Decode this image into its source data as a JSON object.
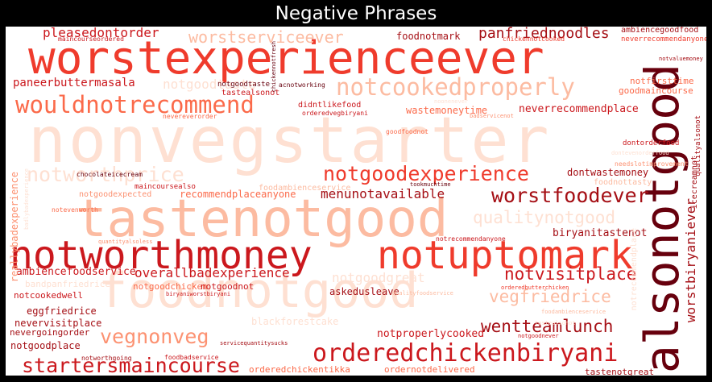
{
  "title": "Negative Phrases",
  "colors": {
    "background": "#ffffff",
    "frame": "#000000",
    "palette": [
      "#fee0d2",
      "#fcbba1",
      "#fc9272",
      "#fb6a4a",
      "#ef3b2c",
      "#cb181d",
      "#a50f15",
      "#67000d"
    ]
  },
  "words": [
    "nonvegstarter",
    "tastenotgood",
    "worstexperienceever",
    "notworthmoney",
    "notuptomark",
    "foodnotgood",
    "alsonotgood",
    "orderedchickenbiryani",
    "wouldnotrecommend",
    "notcookedproperly",
    "notgoodexperience",
    "worstfoodever",
    "notworthprice",
    "startersmaincourse",
    "vegnonveg",
    "qualitynotgood",
    "wentteamlunch",
    "vegfriedrice",
    "notvisitplace",
    "worstserviceever",
    "panfriednoodles",
    "worstbiryaniever",
    "menunotavailable",
    "notgoodtaste",
    "pleasedontorder",
    "overallbadexperience",
    "ambiencefoodservice",
    "paneerbuttermasala",
    "notgoodgreat",
    "foodnotmark",
    "biryanitastenot",
    "notproperlycooked",
    "neverrecommendplace",
    "dontwastemoney",
    "wastemoneytime",
    "notfirsttime",
    "goodmaincourse",
    "recommendplaceanyone",
    "reallybadexperience",
    "nevervisitplace",
    "eggfriedrice",
    "askedusleave",
    "notgoodchicken",
    "notgoodnot",
    "orderedchickentikka",
    "ordernotdelivered",
    "notgoodplace",
    "nevergoingorder",
    "notcookedwell",
    "icecreamnot",
    "notgoodexpected",
    "maincoursealso",
    "didntlikefood",
    "tastealsonot",
    "notrecommendplace",
    "tastenotgreat",
    "ambiencegoodfood",
    "neverrecommendanyone",
    "foodnottasty",
    "blackforestcake",
    "dontorderfood",
    "maincourseordered",
    "chickennotcooked",
    "acnotworking",
    "notgoodtaste",
    "qualityalsonot",
    "needslotimprovement",
    "notvaluemoney",
    "tookmuchtime",
    "nevereverorder",
    "orderedvegbiryani",
    "goodfoodnot",
    "badservicenot",
    "chocolateicecream",
    "foodambienceservice",
    "notevenworth",
    "quantityalsoless",
    "notrecommendanyone",
    "orderedbutterchicken",
    "biryaniworstbiryani",
    "qualityfoodservice",
    "notgoodnever",
    "tastealsonot",
    "foodambienceservice",
    "notworthgoing",
    "foodbadservice",
    "servicequantitysucks",
    "bandpanfriedrice",
    "noonenever",
    "badlybadexperience",
    "dontevenorderfood",
    "chickennotfresh"
  ]
}
